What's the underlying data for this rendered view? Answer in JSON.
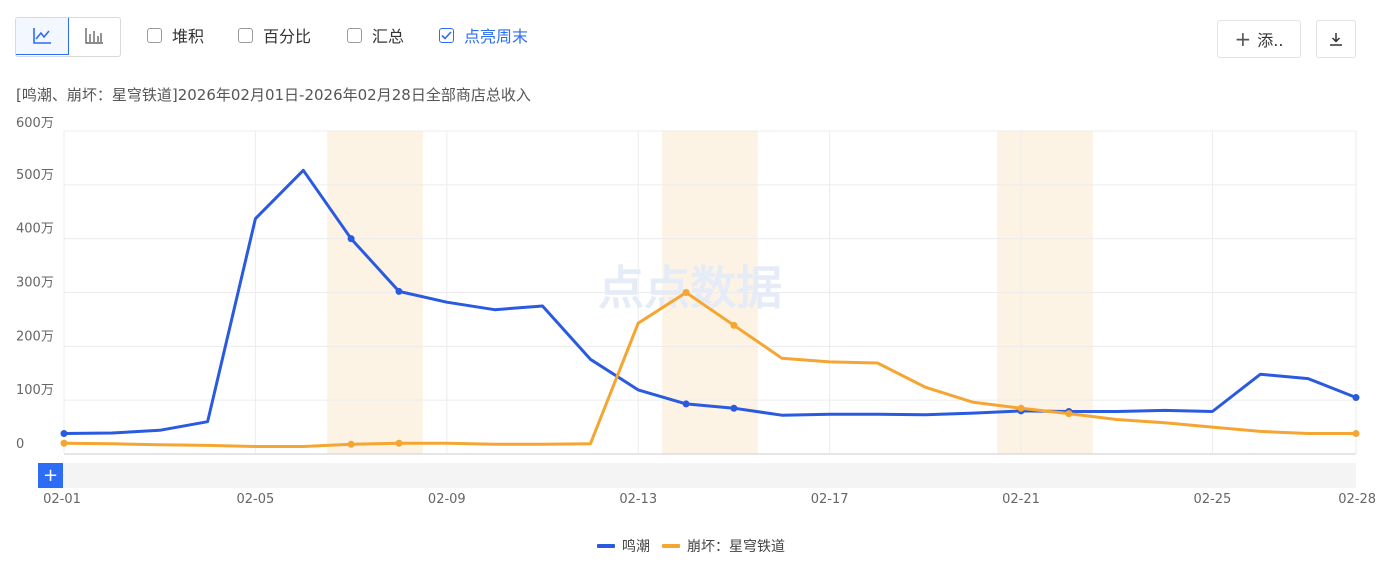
{
  "toolbar": {
    "view_buttons": [
      {
        "icon": "line-chart-icon",
        "active": true
      },
      {
        "icon": "bar-chart-icon",
        "active": false
      }
    ],
    "options": [
      {
        "label": "堆积",
        "checked": false
      },
      {
        "label": "百分比",
        "checked": false
      },
      {
        "label": "汇总",
        "checked": false
      },
      {
        "label": "点亮周末",
        "checked": true
      }
    ],
    "add_label": "添..",
    "download_icon": "download-icon"
  },
  "watermark": "点点数据",
  "colors": {
    "accent": "#2d6cf5",
    "series_1": "#2a5ae0",
    "series_2": "#f5a531",
    "weekend_band": "#fdf3e4"
  },
  "chart_data": {
    "type": "line",
    "title": "[鸣潮、崩坏：星穹铁道]2026年02月01日-2026年02月28日全部商店总收入",
    "x_ticks": [
      "02-01",
      "02-05",
      "02-09",
      "02-13",
      "02-17",
      "02-21",
      "02-25",
      "02-28"
    ],
    "y_ticks": [
      "0",
      "100万",
      "200万",
      "300万",
      "400万",
      "500万",
      "600万"
    ],
    "ylim": [
      0,
      6000000
    ],
    "x": [
      "02-01",
      "02-02",
      "02-03",
      "02-04",
      "02-05",
      "02-06",
      "02-07",
      "02-08",
      "02-09",
      "02-10",
      "02-11",
      "02-12",
      "02-13",
      "02-14",
      "02-15",
      "02-16",
      "02-17",
      "02-18",
      "02-19",
      "02-20",
      "02-21",
      "02-22",
      "02-23",
      "02-24",
      "02-25",
      "02-26",
      "02-27",
      "02-28"
    ],
    "highlighted_weekends": [
      [
        "02-07",
        "02-08"
      ],
      [
        "02-14",
        "02-15"
      ],
      [
        "02-21",
        "02-22"
      ]
    ],
    "series": [
      {
        "name": "鸣潮",
        "values": [
          380000,
          390000,
          440000,
          600000,
          4370000,
          5270000,
          4000000,
          3020000,
          2820000,
          2680000,
          2750000,
          1760000,
          1190000,
          930000,
          850000,
          720000,
          740000,
          740000,
          730000,
          760000,
          800000,
          790000,
          790000,
          810000,
          790000,
          1480000,
          1400000,
          1050000
        ]
      },
      {
        "name": "崩坏：星穹铁道",
        "values": [
          200000,
          190000,
          170000,
          160000,
          140000,
          140000,
          180000,
          200000,
          200000,
          180000,
          180000,
          190000,
          2430000,
          3000000,
          2390000,
          1780000,
          1710000,
          1690000,
          1240000,
          960000,
          850000,
          750000,
          640000,
          580000,
          500000,
          420000,
          380000,
          380000
        ]
      }
    ],
    "legend_position": "bottom-center",
    "grid": true
  }
}
